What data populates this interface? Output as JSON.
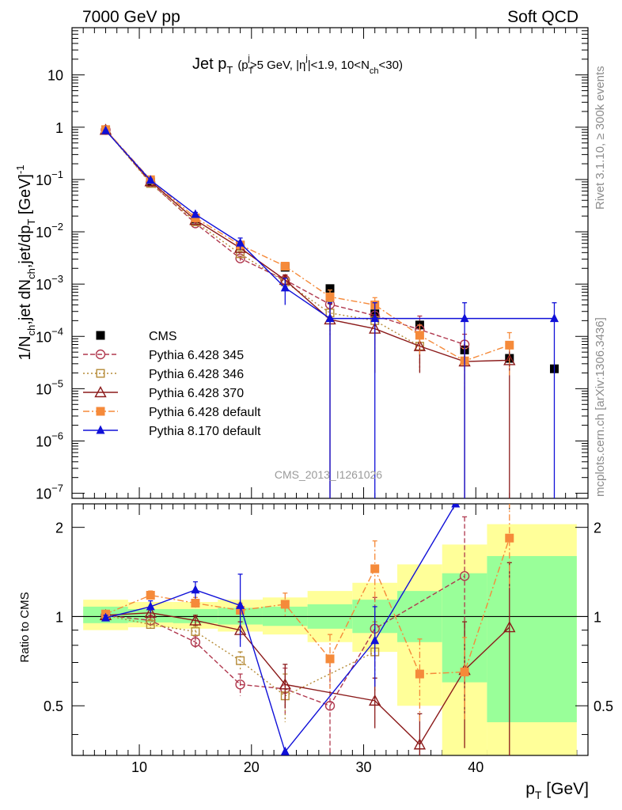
{
  "header": {
    "left": "7000 GeV pp",
    "right": "Soft QCD"
  },
  "side_labels": {
    "right_top": "Rivet 3.1.10, ≥ 300k events",
    "right_bottom": "mcplots.cern.ch [arXiv:1306.3436]"
  },
  "chart_data": [
    {
      "type": "scatter",
      "panel": "main",
      "title": {
        "main": "Jet p",
        "main_sub": "T",
        "cond_open": "(p",
        "cond_sub1": "T",
        "cond_sup1": "j",
        "cond_mid": ">5 GeV, |η",
        "cond_sup2": "j",
        "cond_mid2": "|<1.9, 10<N",
        "cond_sub2": "ch",
        "cond_close": "<30)"
      },
      "ylabel": {
        "p1": "1/N",
        "s1": "ch",
        "p2": ",jet dN",
        "s2": "ch",
        "p3": ",jet/dp",
        "s3": "T",
        "p4": " [GeV]",
        "sup": "-1"
      },
      "watermark": "CMS_2013_I1261026",
      "yscale": "log",
      "xlim": [
        4.0,
        50.0
      ],
      "ylim": [
        8e-08,
        80
      ],
      "y_ticks": [
        {
          "v": 10,
          "base": "10",
          "exp": ""
        },
        {
          "v": 1,
          "base": "1",
          "exp": ""
        },
        {
          "v": 0.1,
          "base": "10",
          "exp": "−1"
        },
        {
          "v": 0.01,
          "base": "10",
          "exp": "−2"
        },
        {
          "v": 0.001,
          "base": "10",
          "exp": "−3"
        },
        {
          "v": 0.0001,
          "base": "10",
          "exp": "−4"
        },
        {
          "v": 1e-05,
          "base": "10",
          "exp": "−5"
        },
        {
          "v": 1e-06,
          "base": "10",
          "exp": "−6"
        },
        {
          "v": 1e-07,
          "base": "10",
          "exp": "−7"
        }
      ],
      "legend_position": "bottom-left",
      "series": [
        {
          "name": "CMS",
          "color": "#000000",
          "marker": "square-filled",
          "dash": "none",
          "x": [
            7,
            11,
            15,
            19,
            23,
            27,
            31,
            35,
            39,
            43,
            47
          ],
          "y": [
            0.88,
            0.09,
            0.0175,
            0.0055,
            0.0021,
            0.00082,
            0.00027,
            0.000165,
            5.5e-05,
            3.8e-05,
            2.4e-05
          ]
        },
        {
          "name": "Pythia 6.428 345",
          "color": "#b0384e",
          "marker": "circle-open",
          "dash": "6,3",
          "x": [
            7,
            11,
            15,
            19,
            23,
            27,
            31,
            35,
            39
          ],
          "y": [
            0.89,
            0.087,
            0.0145,
            0.0031,
            0.0012,
            0.00041,
            0.00025,
            0.000135,
            7e-05
          ],
          "err": [
            0.02,
            0.004,
            0.0008,
            0.0003,
            0.00025,
            0.0002,
            0.00018,
            0.00011,
            4e-05
          ]
        },
        {
          "name": "Pythia 6.428 346",
          "color": "#b58a36",
          "marker": "square-open",
          "dash": "2,3",
          "x": [
            7,
            11,
            15,
            19,
            23,
            27,
            31,
            35
          ],
          "y": [
            0.89,
            0.084,
            0.0155,
            0.0038,
            0.0011,
            0.00028,
            0.0002,
            6.5e-05
          ],
          "err": [
            0.02,
            0.004,
            0.0008,
            0.0004,
            0.00025,
            0.00018,
            0.00015,
            4.5e-05
          ]
        },
        {
          "name": "Pythia 6.428 370",
          "color": "#8b1a1a",
          "marker": "triangle-open",
          "dash": "none",
          "x": [
            7,
            11,
            15,
            19,
            23,
            27,
            31,
            35,
            39,
            43
          ],
          "y": [
            0.89,
            0.092,
            0.0168,
            0.0049,
            0.0012,
            0.00021,
            0.00014,
            6.5e-05,
            3.3e-05,
            3.5e-05
          ],
          "err": [
            0.02,
            0.004,
            0.0009,
            0.0005,
            0.0003,
            0.00021,
            0.00012,
            4.5e-05,
            3.3e-05,
            3.5e-05
          ]
        },
        {
          "name": "Pythia 6.428 default",
          "color": "#f58a3a",
          "marker": "square-filled",
          "dash": "8,3,2,3",
          "x": [
            7,
            11,
            15,
            19,
            23,
            27,
            31,
            35,
            39,
            43
          ],
          "y": [
            0.9,
            0.099,
            0.0185,
            0.0056,
            0.0022,
            0.00057,
            0.0004,
            0.000105,
            3.4e-05,
            6.8e-05
          ],
          "err": [
            0.02,
            0.004,
            0.0009,
            0.0005,
            0.0003,
            0.0002,
            0.00015,
            6e-05,
            2.5e-05,
            5e-05
          ]
        },
        {
          "name": "Pythia 8.170 default",
          "color": "#1010d8",
          "marker": "triangle-filled",
          "dash": "none",
          "x": [
            7,
            11,
            15,
            19,
            23,
            27,
            31,
            39,
            47
          ],
          "y": [
            0.86,
            0.097,
            0.0215,
            0.0061,
            0.00085,
            0.00022,
            0.00022,
            0.00022,
            0.00022
          ],
          "err": [
            0.02,
            0.005,
            0.002,
            0.0015,
            0.00045,
            0.00022,
            0.00022,
            0.00022,
            0.00022
          ]
        }
      ]
    },
    {
      "type": "scatter",
      "panel": "ratio",
      "ylabel": "Ratio to CMS",
      "xlabel": {
        "main": "p",
        "sub": "T",
        "unit": " [GeV]"
      },
      "yscale": "log",
      "xlim": [
        4.0,
        50.0
      ],
      "ylim": [
        0.34,
        2.4
      ],
      "y_ticks": [
        0.5,
        1,
        2
      ],
      "y_tick_labels": [
        "0.5",
        "1",
        "2"
      ],
      "x_ticks": [
        10,
        20,
        30,
        40
      ],
      "x_tick_labels": [
        "10",
        "20",
        "30",
        "40"
      ],
      "bands": [
        {
          "x0": 5,
          "x1": 9,
          "green": [
            0.95,
            1.08
          ],
          "yellow": [
            0.9,
            1.14
          ]
        },
        {
          "x0": 9,
          "x1": 13,
          "green": [
            0.955,
            1.06
          ],
          "yellow": [
            0.92,
            1.12
          ]
        },
        {
          "x0": 13,
          "x1": 17,
          "green": [
            0.95,
            1.06
          ],
          "yellow": [
            0.91,
            1.12
          ]
        },
        {
          "x0": 17,
          "x1": 21,
          "green": [
            0.94,
            1.07
          ],
          "yellow": [
            0.89,
            1.14
          ]
        },
        {
          "x0": 21,
          "x1": 25,
          "green": [
            0.93,
            1.08
          ],
          "yellow": [
            0.87,
            1.16
          ]
        },
        {
          "x0": 25,
          "x1": 29,
          "green": [
            0.91,
            1.1
          ],
          "yellow": [
            0.82,
            1.22
          ]
        },
        {
          "x0": 29,
          "x1": 33,
          "green": [
            0.88,
            1.14
          ],
          "yellow": [
            0.76,
            1.3
          ]
        },
        {
          "x0": 33,
          "x1": 37,
          "green": [
            0.82,
            1.22
          ],
          "yellow": [
            0.5,
            1.5
          ]
        },
        {
          "x0": 37,
          "x1": 41,
          "green": [
            0.6,
            1.4
          ],
          "yellow": [
            0.3,
            1.75
          ]
        },
        {
          "x0": 41,
          "x1": 49,
          "green": [
            0.44,
            1.6
          ],
          "yellow": [
            0.3,
            2.05
          ]
        }
      ],
      "series": [
        {
          "name": "Pythia 6.428 345",
          "color": "#b0384e",
          "marker": "circle-open",
          "dash": "6,3",
          "x": [
            7,
            11,
            15,
            19,
            23,
            27,
            31,
            39
          ],
          "y": [
            1.01,
            0.97,
            0.82,
            0.59,
            0.57,
            0.5,
            0.91,
            1.37
          ],
          "err": [
            0.02,
            0.04,
            0.04,
            0.05,
            0.1,
            0.2,
            0.25,
            0.8
          ]
        },
        {
          "name": "Pythia 6.428 346",
          "color": "#b58a36",
          "marker": "square-open",
          "dash": "2,3",
          "x": [
            7,
            11,
            15,
            19,
            23,
            31
          ],
          "y": [
            1.01,
            0.94,
            0.89,
            0.71,
            0.54,
            0.76
          ],
          "err": [
            0.02,
            0.04,
            0.04,
            0.05,
            0.1,
            0.2
          ]
        },
        {
          "name": "Pythia 6.428 370",
          "color": "#8b1a1a",
          "marker": "triangle-open",
          "dash": "none",
          "x": [
            7,
            11,
            15,
            19,
            23,
            31,
            35,
            39,
            43
          ],
          "y": [
            1.01,
            1.03,
            0.97,
            0.9,
            0.59,
            0.52,
            0.37,
            0.66,
            0.92
          ],
          "err": [
            0.02,
            0.04,
            0.04,
            0.06,
            0.1,
            0.1,
            0.1,
            0.3,
            0.6
          ]
        },
        {
          "name": "Pythia 6.428 default",
          "color": "#f58a3a",
          "marker": "square-filled",
          "dash": "8,3,2,3",
          "x": [
            7,
            11,
            15,
            19,
            23,
            27,
            31,
            35,
            39,
            43
          ],
          "y": [
            1.02,
            1.18,
            1.11,
            1.05,
            1.1,
            0.72,
            1.45,
            0.64,
            0.65,
            1.84
          ],
          "err": [
            0.02,
            0.04,
            0.05,
            0.06,
            0.1,
            0.15,
            0.35,
            0.2,
            0.2,
            0.6
          ]
        },
        {
          "name": "Pythia 8.170 default",
          "color": "#1010d8",
          "marker": "triangle-filled",
          "dash": "none",
          "x": [
            7,
            11,
            15,
            19,
            23,
            31,
            38.2
          ],
          "y": [
            0.99,
            1.08,
            1.23,
            1.09,
            0.35,
            0.83,
            2.4
          ],
          "err": [
            0.02,
            0.05,
            0.08,
            0.3,
            0.0,
            0.25,
            0.0
          ]
        }
      ]
    }
  ]
}
